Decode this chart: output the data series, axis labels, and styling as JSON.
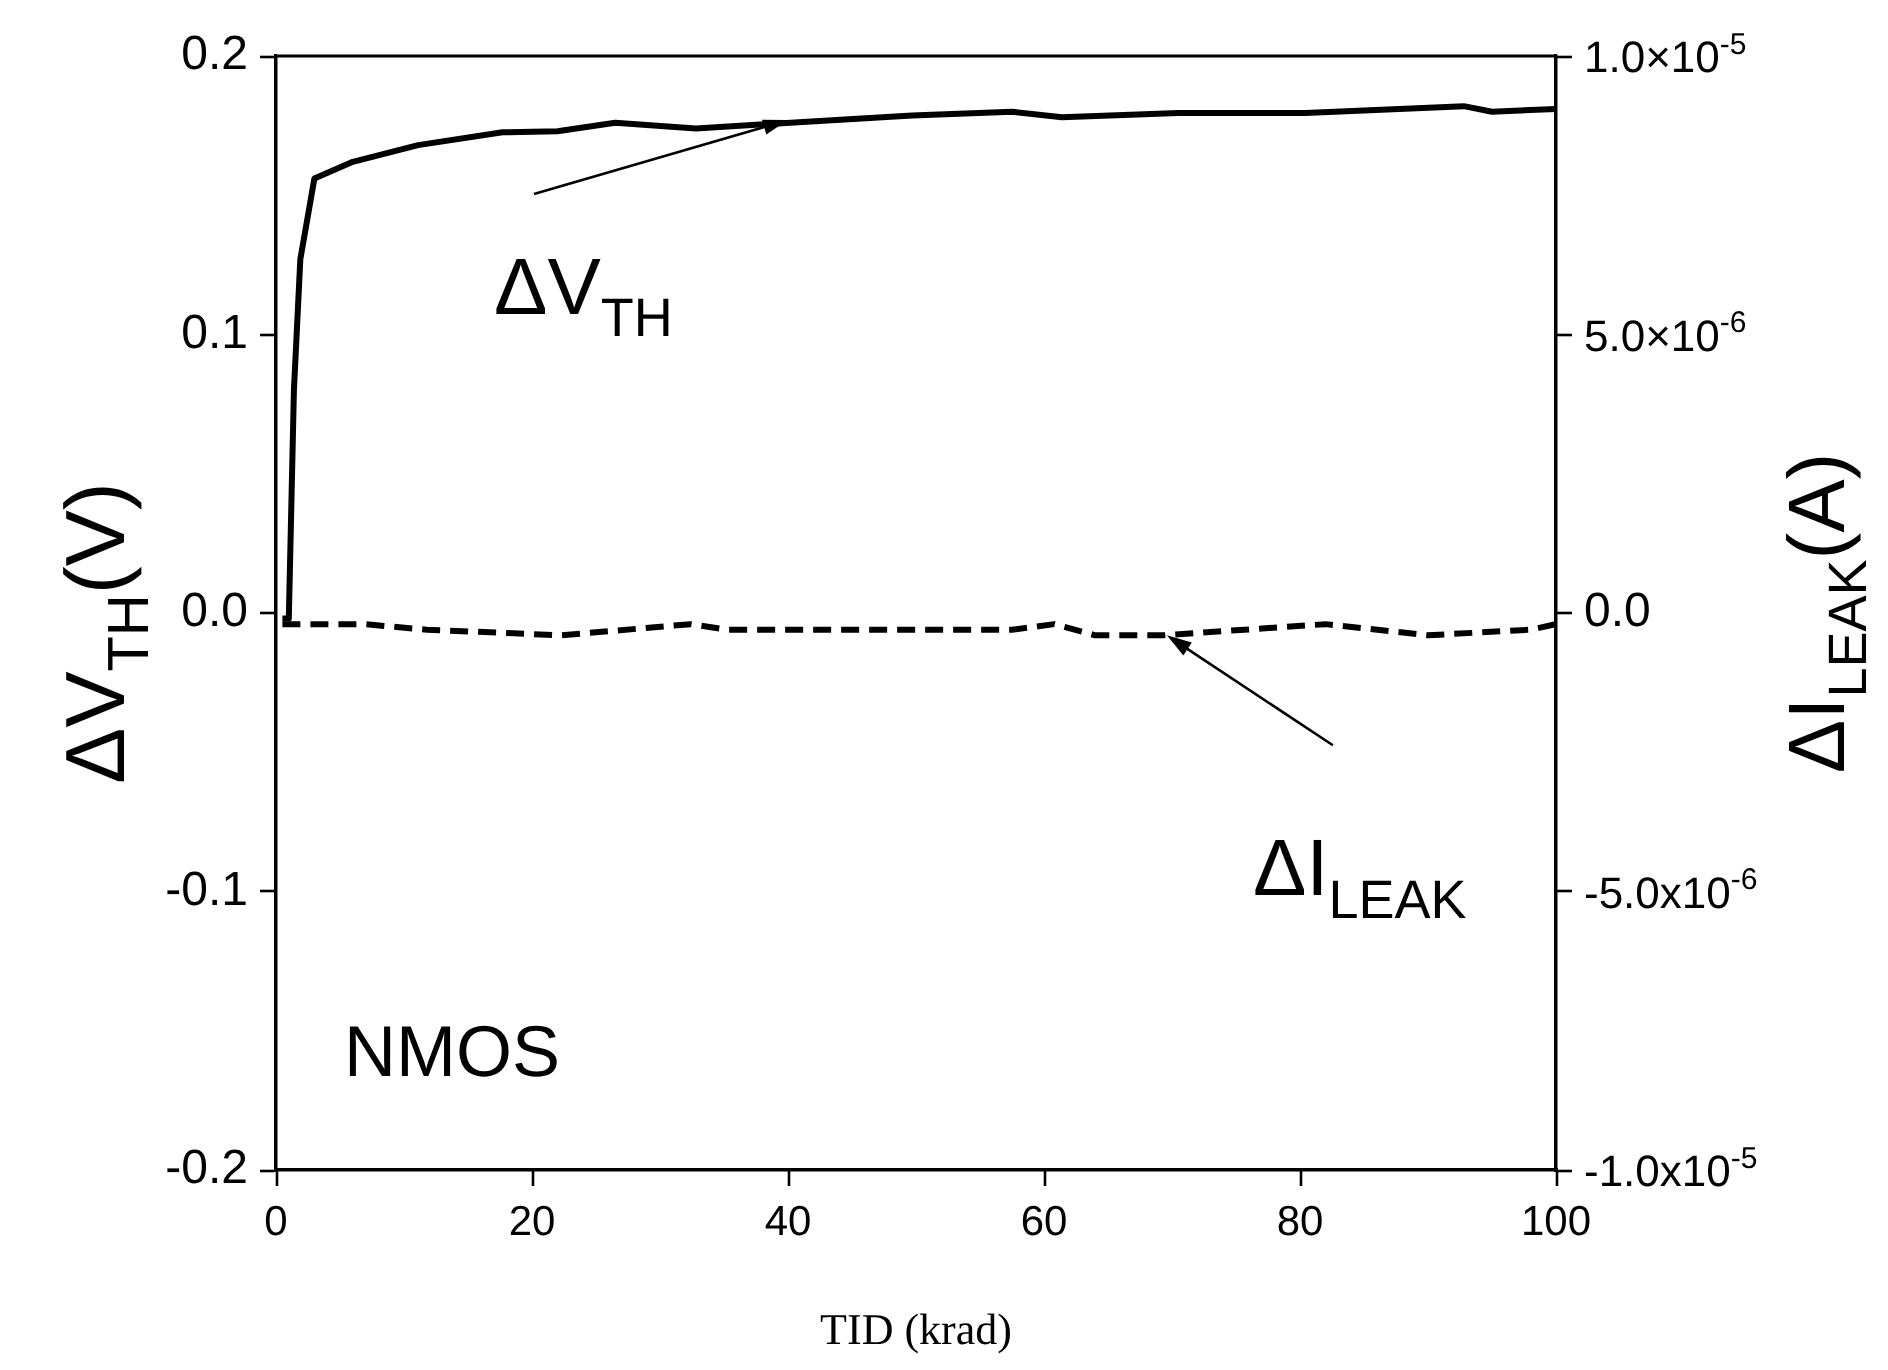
{
  "chart_data": {
    "type": "line",
    "xlabel": "TID (krad)",
    "ylabel": "ΔV$_{TH}$(V)",
    "y2label": "ΔI$_{LEAK}$(A)",
    "xlim": [
      0,
      100
    ],
    "xticks": [
      0,
      20,
      40,
      60,
      80,
      100
    ],
    "ylim": [
      -0.2,
      0.2
    ],
    "yticks": [
      {
        "value": -0.2,
        "label": "-0.2"
      },
      {
        "value": -0.1,
        "label": "-0.1"
      },
      {
        "value": 0,
        "label": "0.0"
      },
      {
        "value": 0.1,
        "label": "0.1"
      },
      {
        "value": 0.2,
        "label": "0.2"
      }
    ],
    "y2lim": [
      -1e-05,
      1e-05
    ],
    "y2ticks": [
      {
        "value": -1e-05,
        "label": "-1.0x10$^{-5}$"
      },
      {
        "value": -5e-06,
        "label": "-5.0x10$^{-6}$"
      },
      {
        "value": 0,
        "label": "0.0"
      },
      {
        "value": 5e-06,
        "label": "5.0×10$^{-6}$"
      },
      {
        "value": 1e-05,
        "label": "1.0×10$^{-5}$"
      }
    ],
    "grid": false,
    "legend": false,
    "marker": "none",
    "series": [
      {
        "type": "line",
        "color": "#000000",
        "line_style": "solid",
        "x": [
          0.5,
          1.0,
          1.4,
          1.9,
          3.0,
          6.0,
          11.1,
          17.7,
          22.0,
          26.5,
          32.8,
          41.8,
          49.7,
          57.5,
          61.4,
          70.5,
          80.4,
          92.8,
          95.0,
          100
        ],
        "values": [
          -0.002,
          -0.002,
          0.08,
          0.127,
          0.156,
          0.162,
          0.168,
          0.1726,
          0.173,
          0.176,
          0.174,
          0.1765,
          0.1786,
          0.18,
          0.178,
          0.1795,
          0.1795,
          0.182,
          0.18,
          0.181
        ]
      },
      {
        "type": "line",
        "color": "#000000",
        "line_style": "dashed",
        "axis": "y2",
        "x": [
          0.5,
          6.9,
          11.8,
          22.3,
          32.4,
          35.3,
          57.5,
          60.8,
          64.0,
          69.3,
          82.0,
          90.0,
          98.0,
          100
        ],
        "values": [
          -2e-07,
          -2e-07,
          -3e-07,
          -4e-07,
          -2e-07,
          -3e-07,
          -3e-07,
          -2e-07,
          -4e-07,
          -4e-07,
          -2e-07,
          -4e-07,
          -3e-07,
          -2e-07
        ]
      }
    ],
    "annotations": [
      {
        "text": "ΔV$_{TH}$",
        "x": 40,
        "y": 0.177
      },
      {
        "text": "ΔI$_{LEAK}$",
        "x": 69.6,
        "y": -0.008
      },
      "NMOS"
    ]
  }
}
